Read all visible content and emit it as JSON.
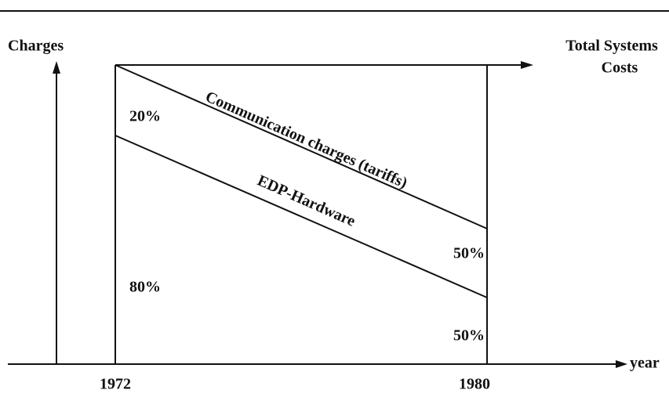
{
  "axes": {
    "y_label": "Charges",
    "x_label": "year",
    "right_label": [
      "Total Systems",
      "Costs"
    ],
    "start": "1972",
    "end": "1980"
  },
  "bands": [
    {
      "label": "Communication charges (tariffs)",
      "start_share": "20%",
      "end_share": "50%"
    },
    {
      "label": "EDP-Hardware",
      "start_share": "80%",
      "end_share": "50%"
    }
  ]
}
